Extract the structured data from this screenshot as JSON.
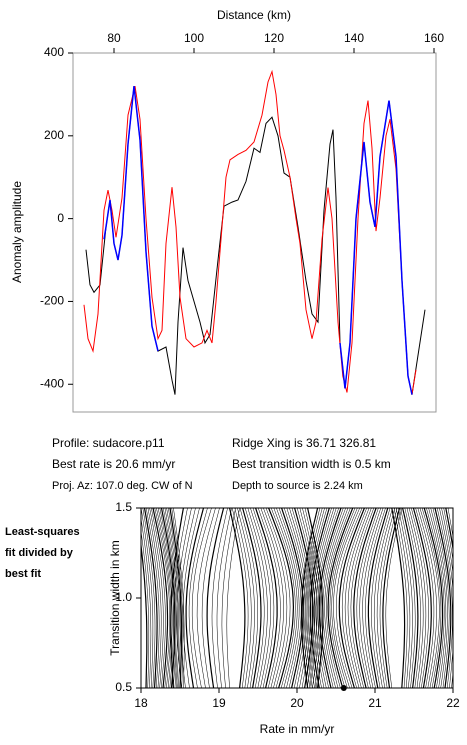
{
  "chart_data": [
    {
      "type": "line",
      "title": "Distance (km)",
      "ylabel": "Anomaly amplitude",
      "xlim": [
        69.75,
        160.5
      ],
      "xticks": [
        80,
        100,
        120,
        140,
        160
      ],
      "ylim": [
        -467,
        400
      ],
      "yticks": [
        400,
        200,
        0,
        -200,
        -400
      ],
      "series": [
        {
          "color": "#000000",
          "x": [
            73,
            74,
            75,
            76.5,
            78,
            79,
            80,
            81,
            82,
            83.5,
            85,
            86.5,
            88,
            89.5,
            91,
            93,
            94.5,
            95.25,
            96,
            97.25,
            98.5,
            100,
            101.5,
            102.75,
            104,
            106,
            107.5,
            109.5,
            111,
            113,
            115,
            116.5,
            118,
            119.5,
            121,
            122.5,
            124,
            126,
            128,
            129.5,
            131,
            132.5,
            134,
            134.75,
            135.5,
            136.5,
            137.75,
            139,
            140.5,
            142.5,
            144,
            145.25,
            146.5,
            148.75,
            150.5,
            152,
            153.5,
            154.5,
            156,
            157.75
          ],
          "values": [
            -75,
            -160,
            -178,
            -160,
            -20,
            45,
            -60,
            -100,
            -40,
            180,
            320,
            190,
            -80,
            -260,
            -320,
            -310,
            -390,
            -425,
            -250,
            -70,
            -150,
            -200,
            -250,
            -300,
            -280,
            -100,
            30,
            40,
            45,
            90,
            170,
            160,
            230,
            245,
            200,
            110,
            100,
            -20,
            -150,
            -230,
            -250,
            20,
            180,
            215,
            50,
            -300,
            -410,
            -300,
            0,
            185,
            40,
            -20,
            150,
            285,
            150,
            -150,
            -380,
            -425,
            -330,
            -220
          ]
        },
        {
          "color": "#ff0000",
          "x": [
            72.5,
            73.5,
            74.75,
            76,
            77.5,
            78.5,
            79.5,
            80.5,
            82,
            83.5,
            85.25,
            86.5,
            88,
            89.5,
            91,
            92,
            93,
            94.5,
            95.5,
            96.5,
            98,
            100,
            102,
            103.25,
            104.5,
            105.5,
            107,
            108,
            109,
            111,
            113,
            115,
            117,
            118.5,
            119.5,
            120.5,
            121.5,
            122.5,
            124,
            125.5,
            126.5,
            128,
            129.5,
            130.5,
            132,
            133.5,
            134.5,
            136,
            137.2,
            138.25,
            139.5,
            141,
            142.5,
            143.5,
            144.5,
            145.5,
            146.5,
            148,
            149,
            150.5,
            152,
            153.5,
            154.5,
            155.5
          ],
          "values": [
            -208,
            -290,
            -320,
            -230,
            20,
            69,
            20,
            -45,
            50,
            250,
            320,
            240,
            0,
            -190,
            -290,
            -270,
            -60,
            76,
            -20,
            -190,
            -290,
            -310,
            -300,
            -270,
            -300,
            -200,
            -20,
            100,
            142,
            155,
            165,
            185,
            250,
            330,
            355,
            300,
            200,
            165,
            100,
            0,
            -60,
            -220,
            -290,
            -250,
            -50,
            75,
            0,
            -250,
            -380,
            -420,
            -300,
            0,
            230,
            285,
            170,
            -30,
            50,
            200,
            240,
            120,
            -150,
            -380,
            -425,
            -365
          ]
        },
        {
          "color": "#0000ff",
          "x": [
            77.5,
            78,
            79,
            80,
            81,
            82,
            83.5,
            85,
            86.5,
            88,
            89.5,
            91,
            110,
            136.5,
            137.75,
            139,
            140.5,
            142.5,
            144,
            145.25,
            146.5,
            148.75,
            150.5,
            152,
            153.5,
            154.5
          ],
          "values": [
            -50,
            -20,
            45,
            -60,
            -100,
            -40,
            180,
            320,
            190,
            -80,
            -260,
            -320,
            null,
            -300,
            -410,
            -300,
            0,
            185,
            40,
            -20,
            150,
            285,
            150,
            -150,
            -380,
            -425
          ]
        }
      ],
      "info": [
        "Profile: sudacore.p11",
        "Best rate is 20.6 mm/yr",
        "Proj. Az: 107.0 deg. CW of N",
        "Ridge Xing is 36.71 326.81",
        "Best transition width is 0.5 km",
        "Depth to source is   2.24 km"
      ]
    },
    {
      "type": "contour",
      "xlabel": "Rate in mm/yr",
      "ylabel": "Transition width in km",
      "note": [
        "Least-squares",
        "fit divided by",
        "best fit"
      ],
      "xlim": [
        18,
        22
      ],
      "xticks": [
        18,
        19,
        20,
        21,
        22
      ],
      "ylim": [
        0.5,
        1.5
      ],
      "yticks": [
        {
          "value": 0.5,
          "label": "0.5"
        },
        {
          "value": 1,
          "label": "1.0"
        },
        {
          "value": 1.5,
          "label": "1.5"
        }
      ],
      "point": {
        "x": 20.6,
        "y": 0.5
      }
    }
  ]
}
